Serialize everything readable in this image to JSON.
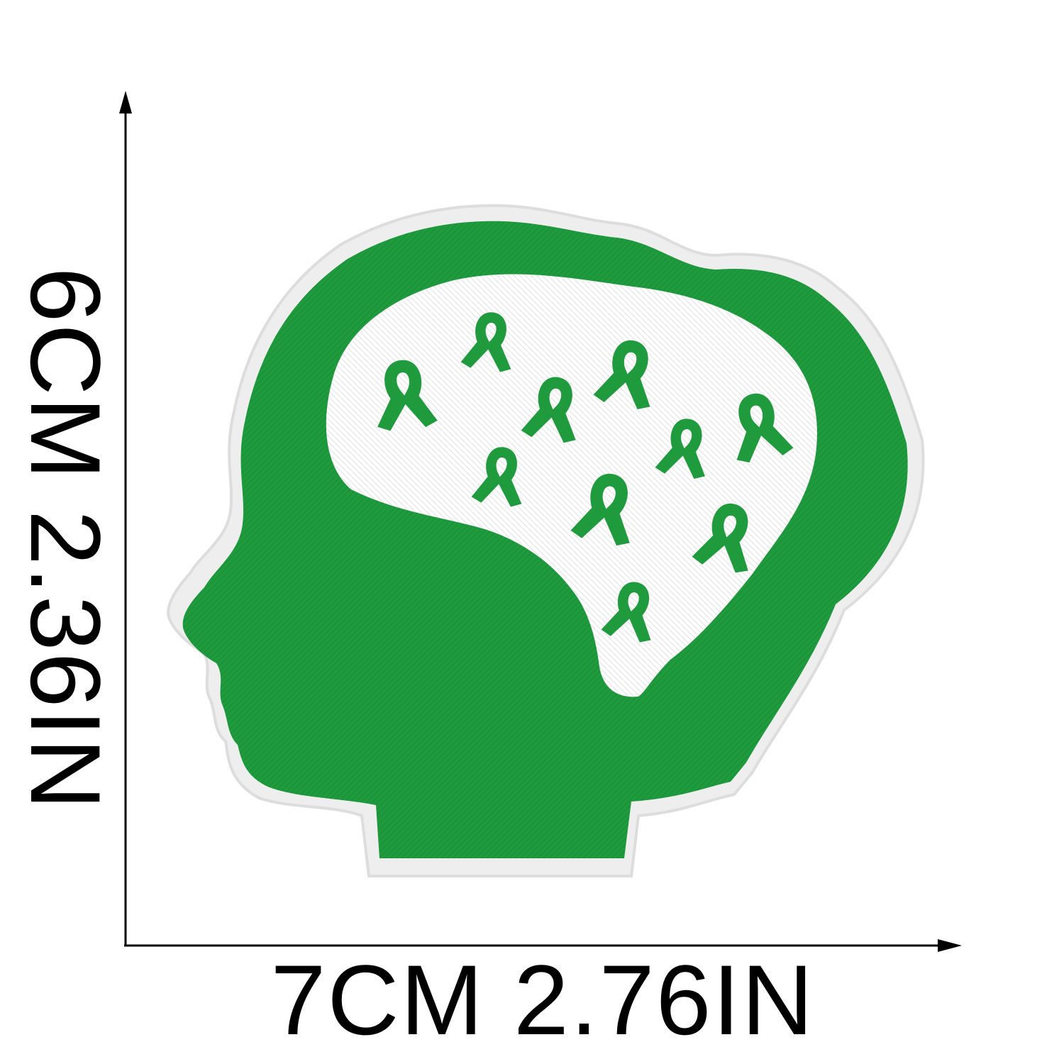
{
  "dimensions": {
    "width_text": "7CM 2.76IN",
    "height_text": "6CM 2.36IN"
  },
  "colors": {
    "patch_green": "#1f9b3e",
    "patch_border": "#efefef",
    "brain_fill": "#ffffff",
    "ribbon_green": "#1f9b3e",
    "ink": "#000000"
  },
  "icons": {
    "patch": "head-silhouette-with-ribbons",
    "ribbon": "awareness-ribbon-icon"
  }
}
